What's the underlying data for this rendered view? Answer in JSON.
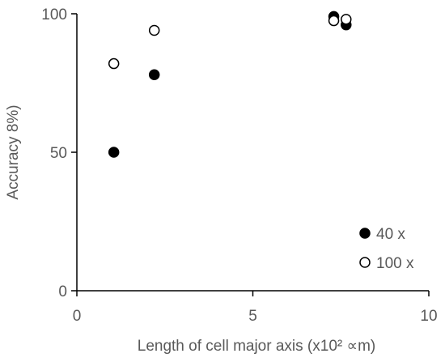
{
  "chart_data": {
    "type": "scatter",
    "title": "",
    "xlabel": "Length of cell major axis (x10² ∝m)",
    "ylabel": "Accuracy 8%)",
    "xlim": [
      0,
      10
    ],
    "ylim": [
      0,
      100
    ],
    "x_ticks": [
      0,
      5,
      10
    ],
    "y_ticks": [
      0,
      50,
      100
    ],
    "grid": false,
    "legend_position": "bottom-right",
    "series": [
      {
        "name": "40 x",
        "marker": "filled-circle",
        "color": "#000000",
        "points": [
          {
            "x": 1.05,
            "y": 50
          },
          {
            "x": 2.2,
            "y": 78
          },
          {
            "x": 7.3,
            "y": 99
          },
          {
            "x": 7.65,
            "y": 96
          }
        ]
      },
      {
        "name": "100 x",
        "marker": "open-circle",
        "color": "#000000",
        "points": [
          {
            "x": 1.05,
            "y": 82
          },
          {
            "x": 2.2,
            "y": 94
          },
          {
            "x": 7.3,
            "y": 97.5
          },
          {
            "x": 7.65,
            "y": 98
          }
        ]
      }
    ]
  }
}
